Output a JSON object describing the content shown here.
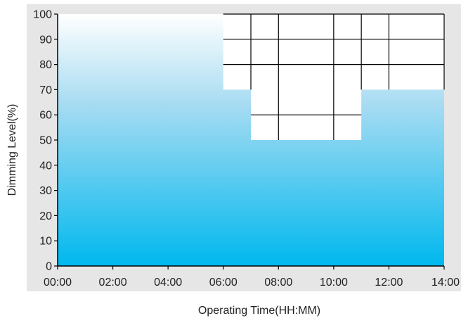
{
  "chart_data": {
    "type": "area",
    "xlabel": "Operating Time(HH:MM)",
    "ylabel": "Dimming Level(%)",
    "x_ticks": [
      "00:00",
      "02:00",
      "04:00",
      "06:00",
      "08:00",
      "10:00",
      "12:00",
      "14:00"
    ],
    "y_ticks": [
      "0",
      "10",
      "20",
      "30",
      "40",
      "50",
      "60",
      "70",
      "80",
      "90",
      "100"
    ],
    "xlim_hours": [
      0,
      14
    ],
    "ylim": [
      0,
      100
    ],
    "grid": false,
    "series": [
      {
        "x_hours": [
          0,
          6,
          6,
          7,
          7,
          11,
          11,
          14
        ],
        "y": [
          100,
          100,
          70,
          70,
          50,
          50,
          70,
          70
        ]
      }
    ],
    "empty_region_grid": {
      "vertical_lines_hours": [
        8,
        10,
        12
      ],
      "horizontal_lines_pct": [
        60,
        80,
        90
      ]
    },
    "colors": {
      "fill_top": "#ffffff",
      "fill_bottom": "#00b8ee",
      "panel_background": "#e6e6e6",
      "axis": "#000000"
    }
  }
}
